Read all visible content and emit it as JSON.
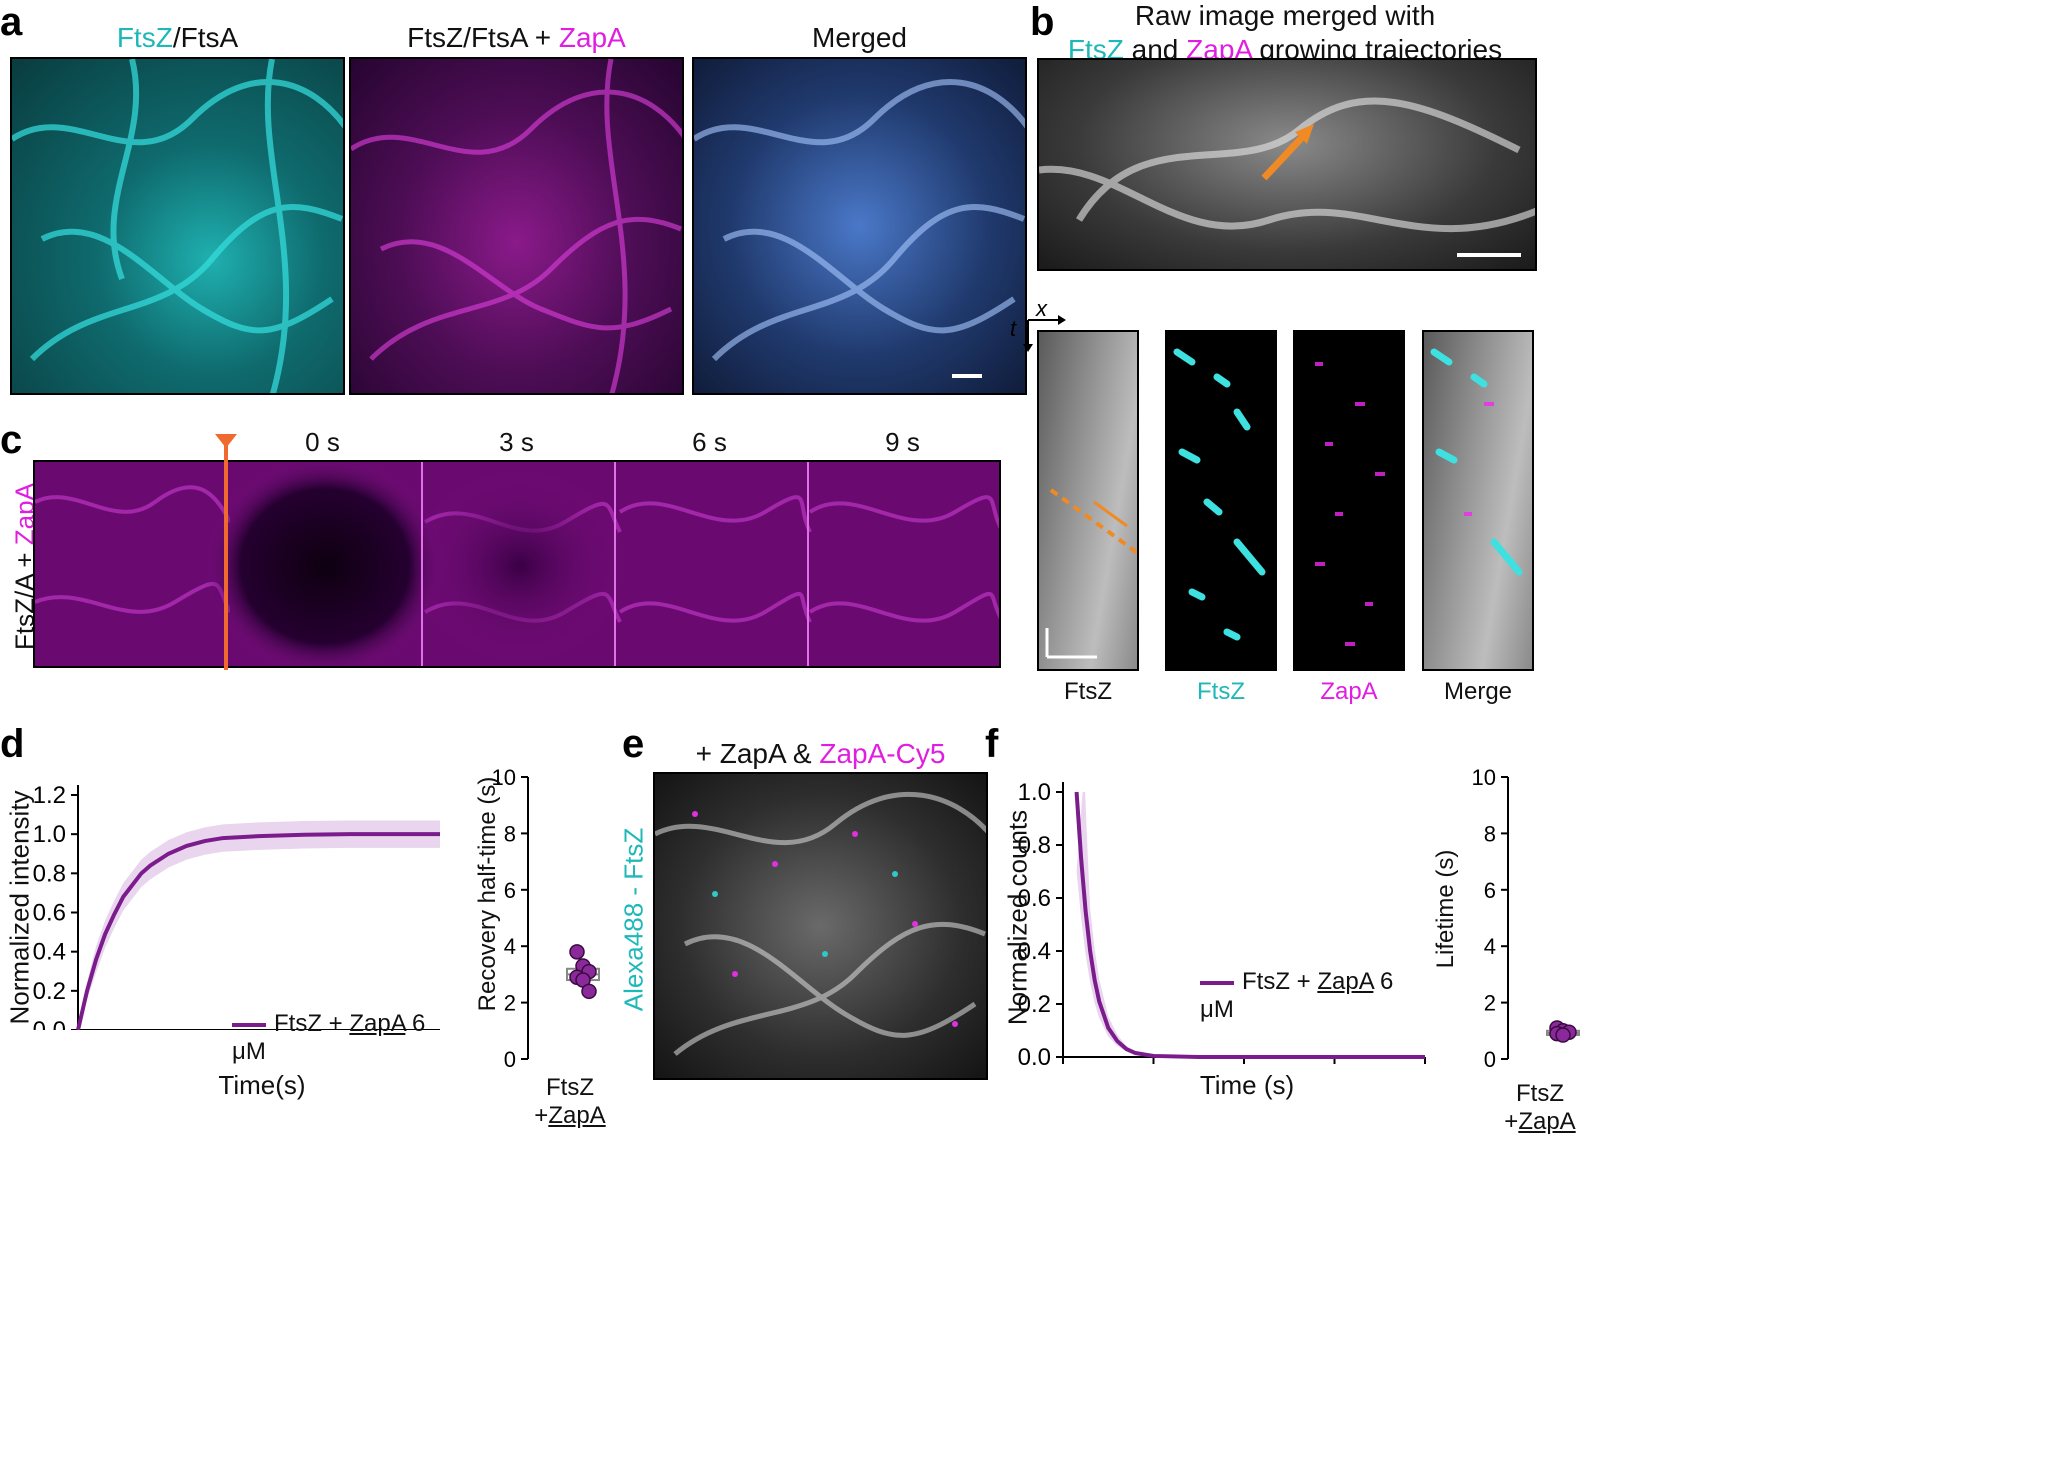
{
  "panel_labels": {
    "a": "a",
    "b": "b",
    "c": "c",
    "d": "d",
    "e": "e",
    "f": "f"
  },
  "colors": {
    "cyan": "#1fb8b8",
    "magenta": "#e01ee0",
    "orange": "#f08a24",
    "purple": "#7b1c8c",
    "fill": "#e9d5ee"
  },
  "panel_a": {
    "title1_cyan": "FtsZ",
    "title1_rest": "/FtsA",
    "title2_rest": "FtsZ/FtsA + ",
    "title2_mag": "ZapA",
    "title3": "Merged"
  },
  "panel_b": {
    "title_line1": "Raw image merged with",
    "title_line2_cyan": "FtsZ",
    "title_line2_and": " and ",
    "title_line2_mag": "ZapA",
    "title_line2_rest": " growing trajectories",
    "axis_x": "x",
    "axis_t": "t",
    "kymo_labels": [
      "FtsZ",
      "FtsZ",
      "ZapA",
      "Merge"
    ]
  },
  "panel_c": {
    "row_label_rest": "FtsZ/A + ",
    "row_label_mag": "ZapA",
    "times": [
      "0 s",
      "3 s",
      "6 s",
      "9 s"
    ]
  },
  "panel_d": {
    "legend": "FtsZ + ",
    "legend_u": "ZapA",
    "legend_end": " 6 μM",
    "xlabel": "Time(s)",
    "ylabel": "Normalized intensity",
    "side_ylabel": "Recovery half-time (s)",
    "side_cat_1": "FtsZ",
    "side_cat_2": "+",
    "side_cat_2u": "ZapA"
  },
  "panel_e": {
    "title_rest": "+ ZapA & ",
    "title_mag": "ZapA-Cy5",
    "side_label": "Alexa488 - FtsZ"
  },
  "panel_f": {
    "legend": "FtsZ + ",
    "legend_u": "ZapA",
    "legend_end": " 6 μM",
    "xlabel": "Time (s)",
    "ylabel": "Normalized counts",
    "side_ylabel": "Lifetime (s)",
    "side_cat_1": "FtsZ",
    "side_cat_2": "+",
    "side_cat_2u": "ZapA"
  },
  "chart_data": [
    {
      "type": "line",
      "xlabel": "Time(s)",
      "ylabel": "Normalized intensity",
      "xlim": [
        0,
        40
      ],
      "ylim": [
        0,
        1.2
      ],
      "xticks": [
        0,
        10,
        20,
        30,
        40
      ],
      "yticks": [
        0.0,
        0.2,
        0.4,
        0.6,
        0.8,
        1.0,
        1.2
      ],
      "series": [
        {
          "name": "FtsZ + ZapA 6 μM",
          "x": [
            0,
            1,
            2,
            3,
            4,
            5,
            6,
            7,
            8,
            10,
            12,
            14,
            16,
            18,
            20,
            25,
            30,
            35,
            40
          ],
          "y": [
            0,
            0.2,
            0.36,
            0.49,
            0.59,
            0.68,
            0.74,
            0.8,
            0.84,
            0.9,
            0.94,
            0.965,
            0.98,
            0.985,
            0.99,
            0.997,
            1.0,
            1.0,
            1.0
          ],
          "band": 0.07
        }
      ]
    },
    {
      "type": "scatter",
      "ylabel": "Recovery half-time (s)",
      "ylim": [
        0,
        10
      ],
      "yticks": [
        0,
        2,
        4,
        6,
        8,
        10
      ],
      "categories": [
        "FtsZ +ZapA"
      ],
      "values": [
        3.8,
        3.3,
        3.1,
        2.9,
        2.8,
        2.4
      ],
      "box": {
        "q1": 2.8,
        "median": 3.0,
        "q3": 3.2
      }
    },
    {
      "type": "line",
      "xlabel": "Time (s)",
      "ylabel": "Normalized counts",
      "xlim": [
        0,
        40
      ],
      "ylim": [
        0,
        1.0
      ],
      "xticks": [
        0,
        10,
        20,
        30,
        40
      ],
      "yticks": [
        0.0,
        0.2,
        0.4,
        0.6,
        0.8,
        1.0
      ],
      "series": [
        {
          "name": "FtsZ + ZapA 6 μM",
          "x": [
            1.5,
            2,
            2.5,
            3,
            3.5,
            4,
            5,
            6,
            7,
            8,
            10,
            15,
            20,
            30,
            40
          ],
          "y": [
            1.0,
            0.75,
            0.55,
            0.4,
            0.29,
            0.21,
            0.11,
            0.06,
            0.03,
            0.015,
            0.004,
            0,
            0,
            0,
            0
          ]
        }
      ]
    },
    {
      "type": "scatter",
      "ylabel": "Lifetime (s)",
      "ylim": [
        0,
        10
      ],
      "yticks": [
        0,
        2,
        4,
        6,
        8,
        10
      ],
      "categories": [
        "FtsZ +ZapA"
      ],
      "values": [
        1.1,
        1.0,
        0.95,
        0.9,
        0.85
      ],
      "box": {
        "q1": 0.85,
        "median": 0.92,
        "q3": 1.0
      }
    }
  ]
}
